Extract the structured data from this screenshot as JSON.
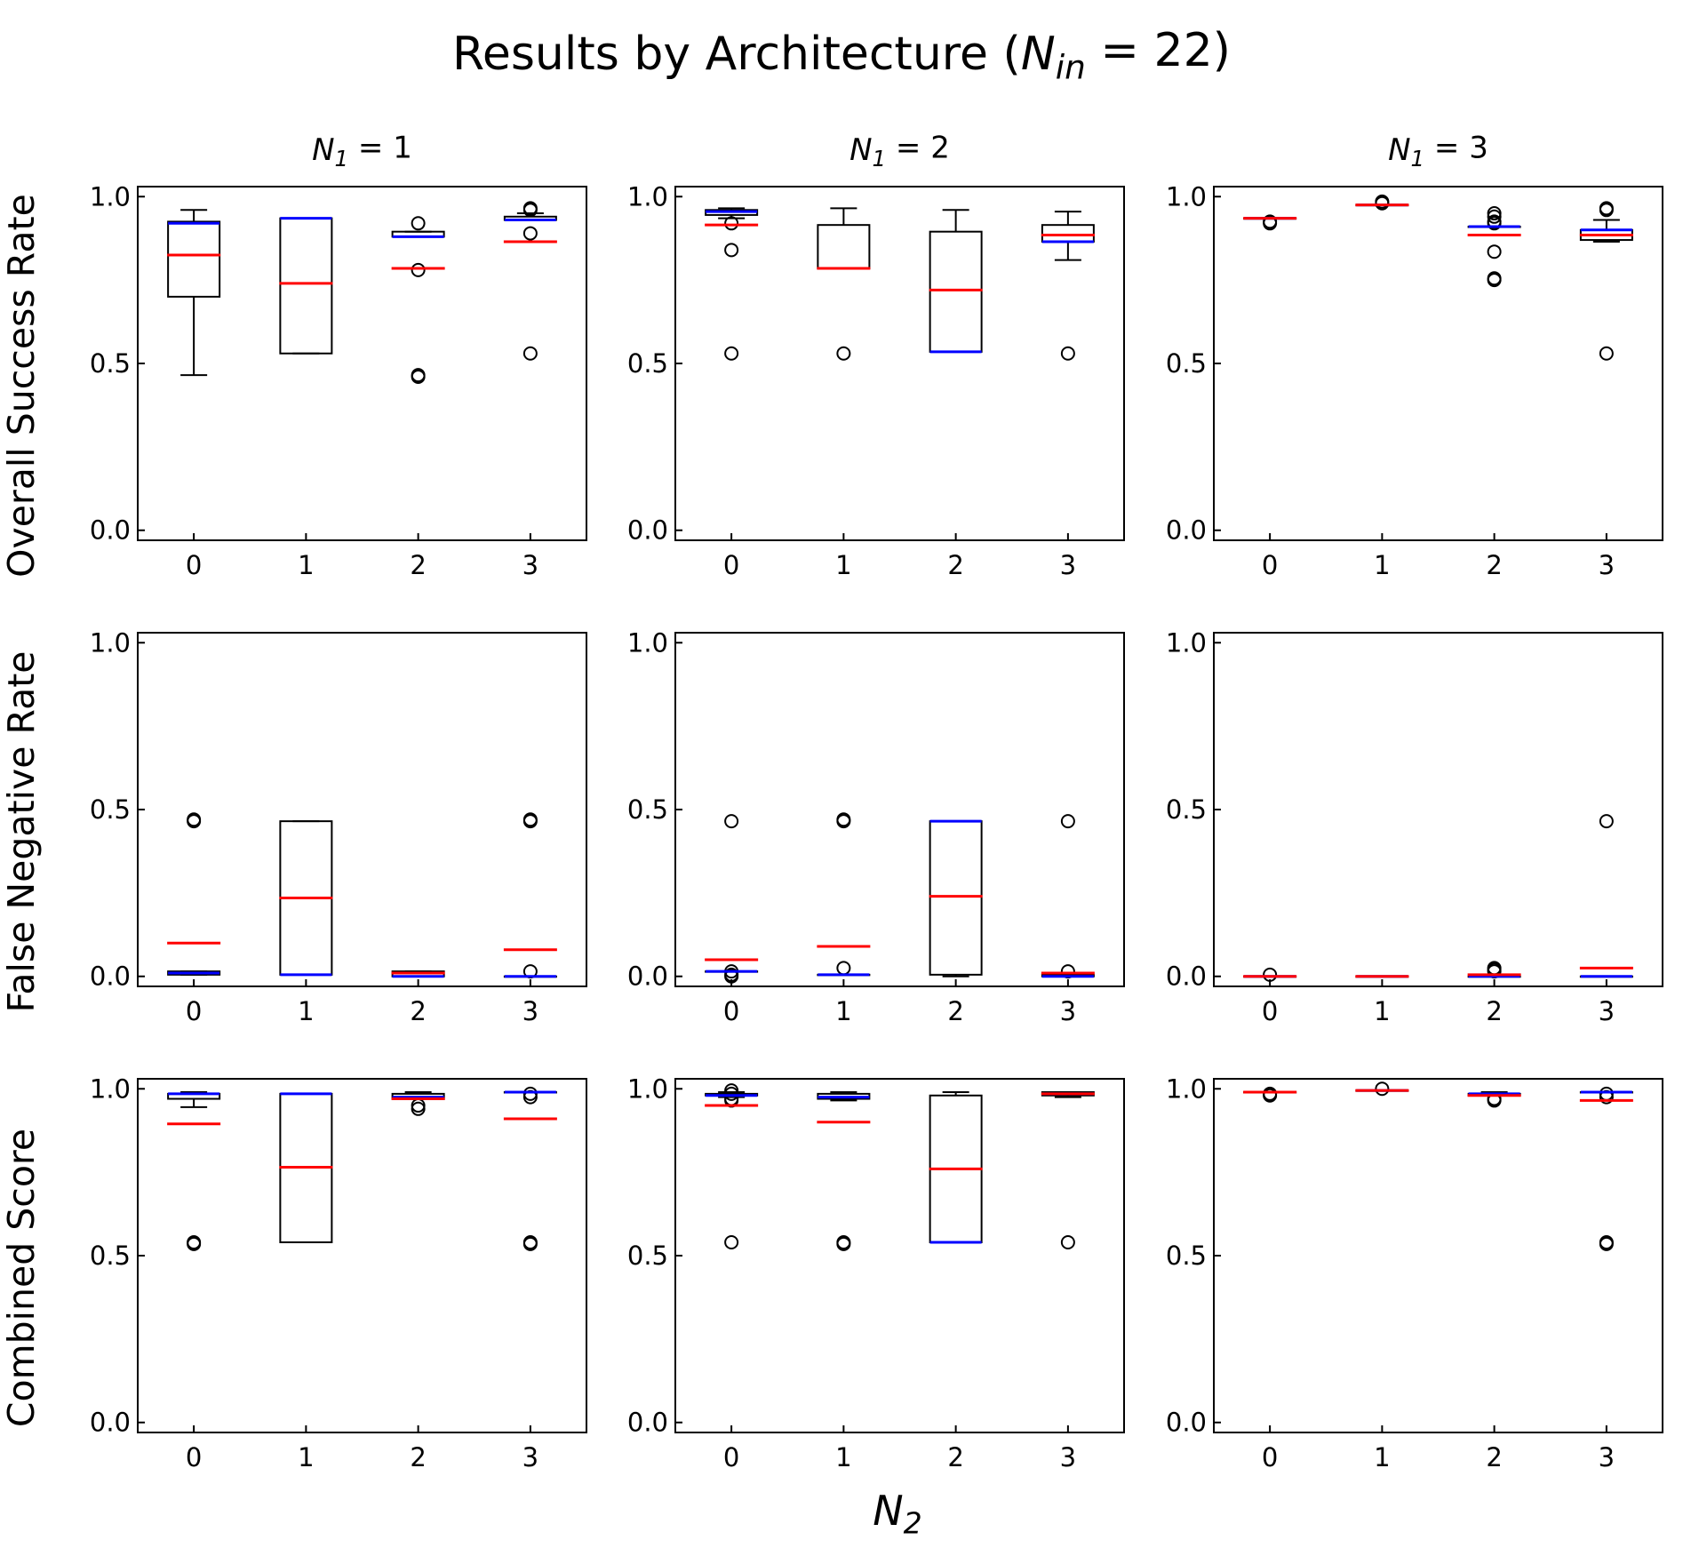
{
  "chart_data": {
    "type": "boxplot",
    "title": "Results by Architecture (N_in = 22)",
    "xlabel": "N₂",
    "columns": [
      {
        "label": "N₁ = 1"
      },
      {
        "label": "N₁ = 2"
      },
      {
        "label": "N₁ = 3"
      }
    ],
    "rows": [
      {
        "label": "Overall Success Rate"
      },
      {
        "label": "False Negative Rate"
      },
      {
        "label": "Combined Score"
      }
    ],
    "x_categories": [
      "0",
      "1",
      "2",
      "3"
    ],
    "y_ticks": [
      0.0,
      0.5,
      1.0
    ],
    "y_tick_labels": [
      "0.0",
      "0.5",
      "1.0"
    ],
    "ylim": [
      -0.03,
      1.03
    ],
    "line_colors": {
      "box": "#000000",
      "median": "#0000ff",
      "mean": "#ff0000"
    },
    "panels": [
      [
        [
          {
            "q1": 0.7,
            "q3": 0.925,
            "wlo": 0.465,
            "whi": 0.96,
            "median": 0.92,
            "mean": 0.825,
            "outliers": []
          },
          {
            "q1": 0.53,
            "q3": 0.935,
            "wlo": 0.53,
            "whi": 0.935,
            "median": 0.935,
            "mean": 0.74,
            "outliers": []
          },
          {
            "q1": 0.88,
            "q3": 0.895,
            "wlo": 0.88,
            "whi": 0.895,
            "median": 0.88,
            "mean": 0.785,
            "outliers": [
              0.92,
              0.78,
              0.465,
              0.46
            ]
          },
          {
            "q1": 0.93,
            "q3": 0.94,
            "wlo": 0.93,
            "whi": 0.95,
            "median": 0.93,
            "mean": 0.865,
            "outliers": [
              0.965,
              0.96,
              0.89,
              0.53
            ]
          }
        ],
        [
          {
            "q1": 0.945,
            "q3": 0.96,
            "wlo": 0.935,
            "whi": 0.965,
            "median": 0.955,
            "mean": 0.915,
            "outliers": [
              0.92,
              0.84,
              0.53
            ]
          },
          {
            "q1": 0.785,
            "q3": 0.915,
            "wlo": 0.785,
            "whi": 0.965,
            "median": 0.785,
            "mean": 0.785,
            "outliers": [
              0.53
            ]
          },
          {
            "q1": 0.535,
            "q3": 0.895,
            "wlo": 0.535,
            "whi": 0.96,
            "median": 0.535,
            "mean": 0.72,
            "outliers": []
          },
          {
            "q1": 0.865,
            "q3": 0.915,
            "wlo": 0.81,
            "whi": 0.955,
            "median": 0.865,
            "mean": 0.885,
            "outliers": [
              0.53
            ]
          }
        ],
        [
          {
            "q1": 0.935,
            "q3": 0.935,
            "wlo": 0.935,
            "whi": 0.935,
            "median": 0.935,
            "mean": 0.935,
            "outliers": [
              0.925,
              0.92
            ]
          },
          {
            "q1": 0.975,
            "q3": 0.975,
            "wlo": 0.975,
            "whi": 0.975,
            "median": 0.975,
            "mean": 0.975,
            "outliers": [
              0.985,
              0.98
            ]
          },
          {
            "q1": 0.91,
            "q3": 0.91,
            "wlo": 0.91,
            "whi": 0.91,
            "median": 0.91,
            "mean": 0.885,
            "outliers": [
              0.95,
              0.94,
              0.925,
              0.92,
              0.835,
              0.755,
              0.75
            ]
          },
          {
            "q1": 0.87,
            "q3": 0.9,
            "wlo": 0.865,
            "whi": 0.93,
            "median": 0.9,
            "mean": 0.885,
            "outliers": [
              0.965,
              0.96,
              0.53
            ]
          }
        ]
      ],
      [
        [
          {
            "q1": 0.005,
            "q3": 0.015,
            "wlo": 0.005,
            "whi": 0.015,
            "median": 0.01,
            "mean": 0.1,
            "outliers": [
              0.47,
              0.465
            ]
          },
          {
            "q1": 0.005,
            "q3": 0.465,
            "wlo": 0.005,
            "whi": 0.465,
            "median": 0.005,
            "mean": 0.235,
            "outliers": []
          },
          {
            "q1": 0.0,
            "q3": 0.015,
            "wlo": 0.0,
            "whi": 0.015,
            "median": 0.0,
            "mean": 0.01,
            "outliers": []
          },
          {
            "q1": 0.0,
            "q3": 0.0,
            "wlo": 0.0,
            "whi": 0.0,
            "median": 0.0,
            "mean": 0.08,
            "outliers": [
              0.47,
              0.465,
              0.015
            ]
          }
        ],
        [
          {
            "q1": 0.015,
            "q3": 0.015,
            "wlo": 0.015,
            "whi": 0.015,
            "median": 0.015,
            "mean": 0.05,
            "outliers": [
              0.465,
              0.015,
              0.005,
              0.0
            ]
          },
          {
            "q1": 0.005,
            "q3": 0.005,
            "wlo": 0.005,
            "whi": 0.005,
            "median": 0.005,
            "mean": 0.09,
            "outliers": [
              0.47,
              0.465,
              0.025
            ]
          },
          {
            "q1": 0.005,
            "q3": 0.465,
            "wlo": 0.0,
            "whi": 0.465,
            "median": 0.465,
            "mean": 0.24,
            "outliers": []
          },
          {
            "q1": 0.0,
            "q3": 0.005,
            "wlo": 0.0,
            "whi": 0.005,
            "median": 0.0,
            "mean": 0.01,
            "outliers": [
              0.465,
              0.015
            ]
          }
        ],
        [
          {
            "q1": 0.0,
            "q3": 0.0,
            "wlo": 0.0,
            "whi": 0.0,
            "median": 0.0,
            "mean": 0.0,
            "outliers": [
              0.005
            ]
          },
          {
            "q1": 0.0,
            "q3": 0.0,
            "wlo": 0.0,
            "whi": 0.0,
            "median": 0.0,
            "mean": 0.0,
            "outliers": []
          },
          {
            "q1": 0.0,
            "q3": 0.0,
            "wlo": 0.0,
            "whi": 0.0,
            "median": 0.0,
            "mean": 0.005,
            "outliers": [
              0.025,
              0.02,
              0.015
            ]
          },
          {
            "q1": 0.0,
            "q3": 0.0,
            "wlo": 0.0,
            "whi": 0.0,
            "median": 0.0,
            "mean": 0.025,
            "outliers": [
              0.465
            ]
          }
        ]
      ],
      [
        [
          {
            "q1": 0.97,
            "q3": 0.985,
            "wlo": 0.945,
            "whi": 0.99,
            "median": 0.985,
            "mean": 0.895,
            "outliers": [
              0.54,
              0.535
            ]
          },
          {
            "q1": 0.54,
            "q3": 0.985,
            "wlo": 0.54,
            "whi": 0.985,
            "median": 0.985,
            "mean": 0.765,
            "outliers": []
          },
          {
            "q1": 0.97,
            "q3": 0.985,
            "wlo": 0.97,
            "whi": 0.99,
            "median": 0.975,
            "mean": 0.97,
            "outliers": [
              0.95,
              0.94
            ]
          },
          {
            "q1": 0.99,
            "q3": 0.99,
            "wlo": 0.99,
            "whi": 0.99,
            "median": 0.99,
            "mean": 0.91,
            "outliers": [
              0.985,
              0.975,
              0.54,
              0.535
            ]
          }
        ],
        [
          {
            "q1": 0.98,
            "q3": 0.985,
            "wlo": 0.975,
            "whi": 0.99,
            "median": 0.98,
            "mean": 0.95,
            "outliers": [
              0.995,
              0.985,
              0.97,
              0.965,
              0.54
            ]
          },
          {
            "q1": 0.97,
            "q3": 0.985,
            "wlo": 0.965,
            "whi": 0.99,
            "median": 0.975,
            "mean": 0.9,
            "outliers": [
              0.54,
              0.535
            ]
          },
          {
            "q1": 0.54,
            "q3": 0.98,
            "wlo": 0.54,
            "whi": 0.99,
            "median": 0.54,
            "mean": 0.76,
            "outliers": []
          },
          {
            "q1": 0.98,
            "q3": 0.99,
            "wlo": 0.975,
            "whi": 0.99,
            "median": 0.985,
            "mean": 0.985,
            "outliers": [
              0.54
            ]
          }
        ],
        [
          {
            "q1": 0.99,
            "q3": 0.99,
            "wlo": 0.99,
            "whi": 0.99,
            "median": 0.99,
            "mean": 0.99,
            "outliers": [
              0.985,
              0.98
            ]
          },
          {
            "q1": 0.995,
            "q3": 0.995,
            "wlo": 0.995,
            "whi": 0.995,
            "median": 0.995,
            "mean": 0.995,
            "outliers": [
              1.0
            ]
          },
          {
            "q1": 0.98,
            "q3": 0.985,
            "wlo": 0.98,
            "whi": 0.99,
            "median": 0.985,
            "mean": 0.98,
            "outliers": [
              0.97,
              0.965
            ]
          },
          {
            "q1": 0.99,
            "q3": 0.99,
            "wlo": 0.99,
            "whi": 0.99,
            "median": 0.99,
            "mean": 0.965,
            "outliers": [
              0.985,
              0.975,
              0.54,
              0.535
            ]
          }
        ]
      ]
    ]
  }
}
